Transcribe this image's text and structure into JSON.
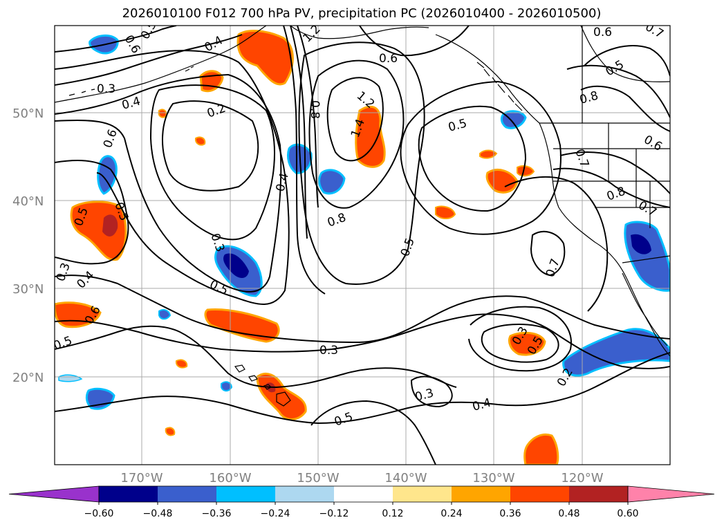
{
  "title": "2026010100 F012 700 hPa PV, precipitation PC (2026010400 - 2026010500)",
  "axes": {
    "lon_ticks": [
      "170°W",
      "160°W",
      "150°W",
      "140°W",
      "130°W",
      "120°W"
    ],
    "lat_ticks": [
      "50°N",
      "40°N",
      "30°N",
      "20°N"
    ]
  },
  "colorbar": {
    "ticks": [
      "−0.60",
      "−0.48",
      "−0.36",
      "−0.24",
      "−0.12",
      "0.12",
      "0.24",
      "0.36",
      "0.48",
      "0.60"
    ],
    "colors": [
      "#9932cc",
      "#00008b",
      "#3a5fcd",
      "#00bfff",
      "#add8f0",
      "#ffffff",
      "#ffe68c",
      "#ffa500",
      "#ff4500",
      "#b22222",
      "#ff82aa"
    ],
    "extend": "both"
  },
  "contour_labels": [
    "0.6",
    "0.5",
    "0.4",
    "1.2",
    "0.6",
    "0.6",
    "0.7",
    "0.3",
    "0.4",
    "0.2",
    "0.6",
    "0.8",
    "1.2",
    "1.4",
    "0.5",
    "0.8",
    "0.5",
    "0.6",
    "0.7",
    "0.8",
    "0.7",
    "0.5",
    "0.5",
    "0.4",
    "0.8",
    "0.5",
    "0.7",
    "0.3",
    "0.3",
    "0.4",
    "0.6",
    "0.5",
    "0.5",
    "0.3",
    "0.3",
    "0.5",
    "0.2",
    "0.3",
    "0.4",
    "0.5"
  ],
  "map_style": {
    "grid": true,
    "contour_color": "#000000",
    "coast_color": "#000000",
    "grid_color": "#a9a9a9"
  }
}
